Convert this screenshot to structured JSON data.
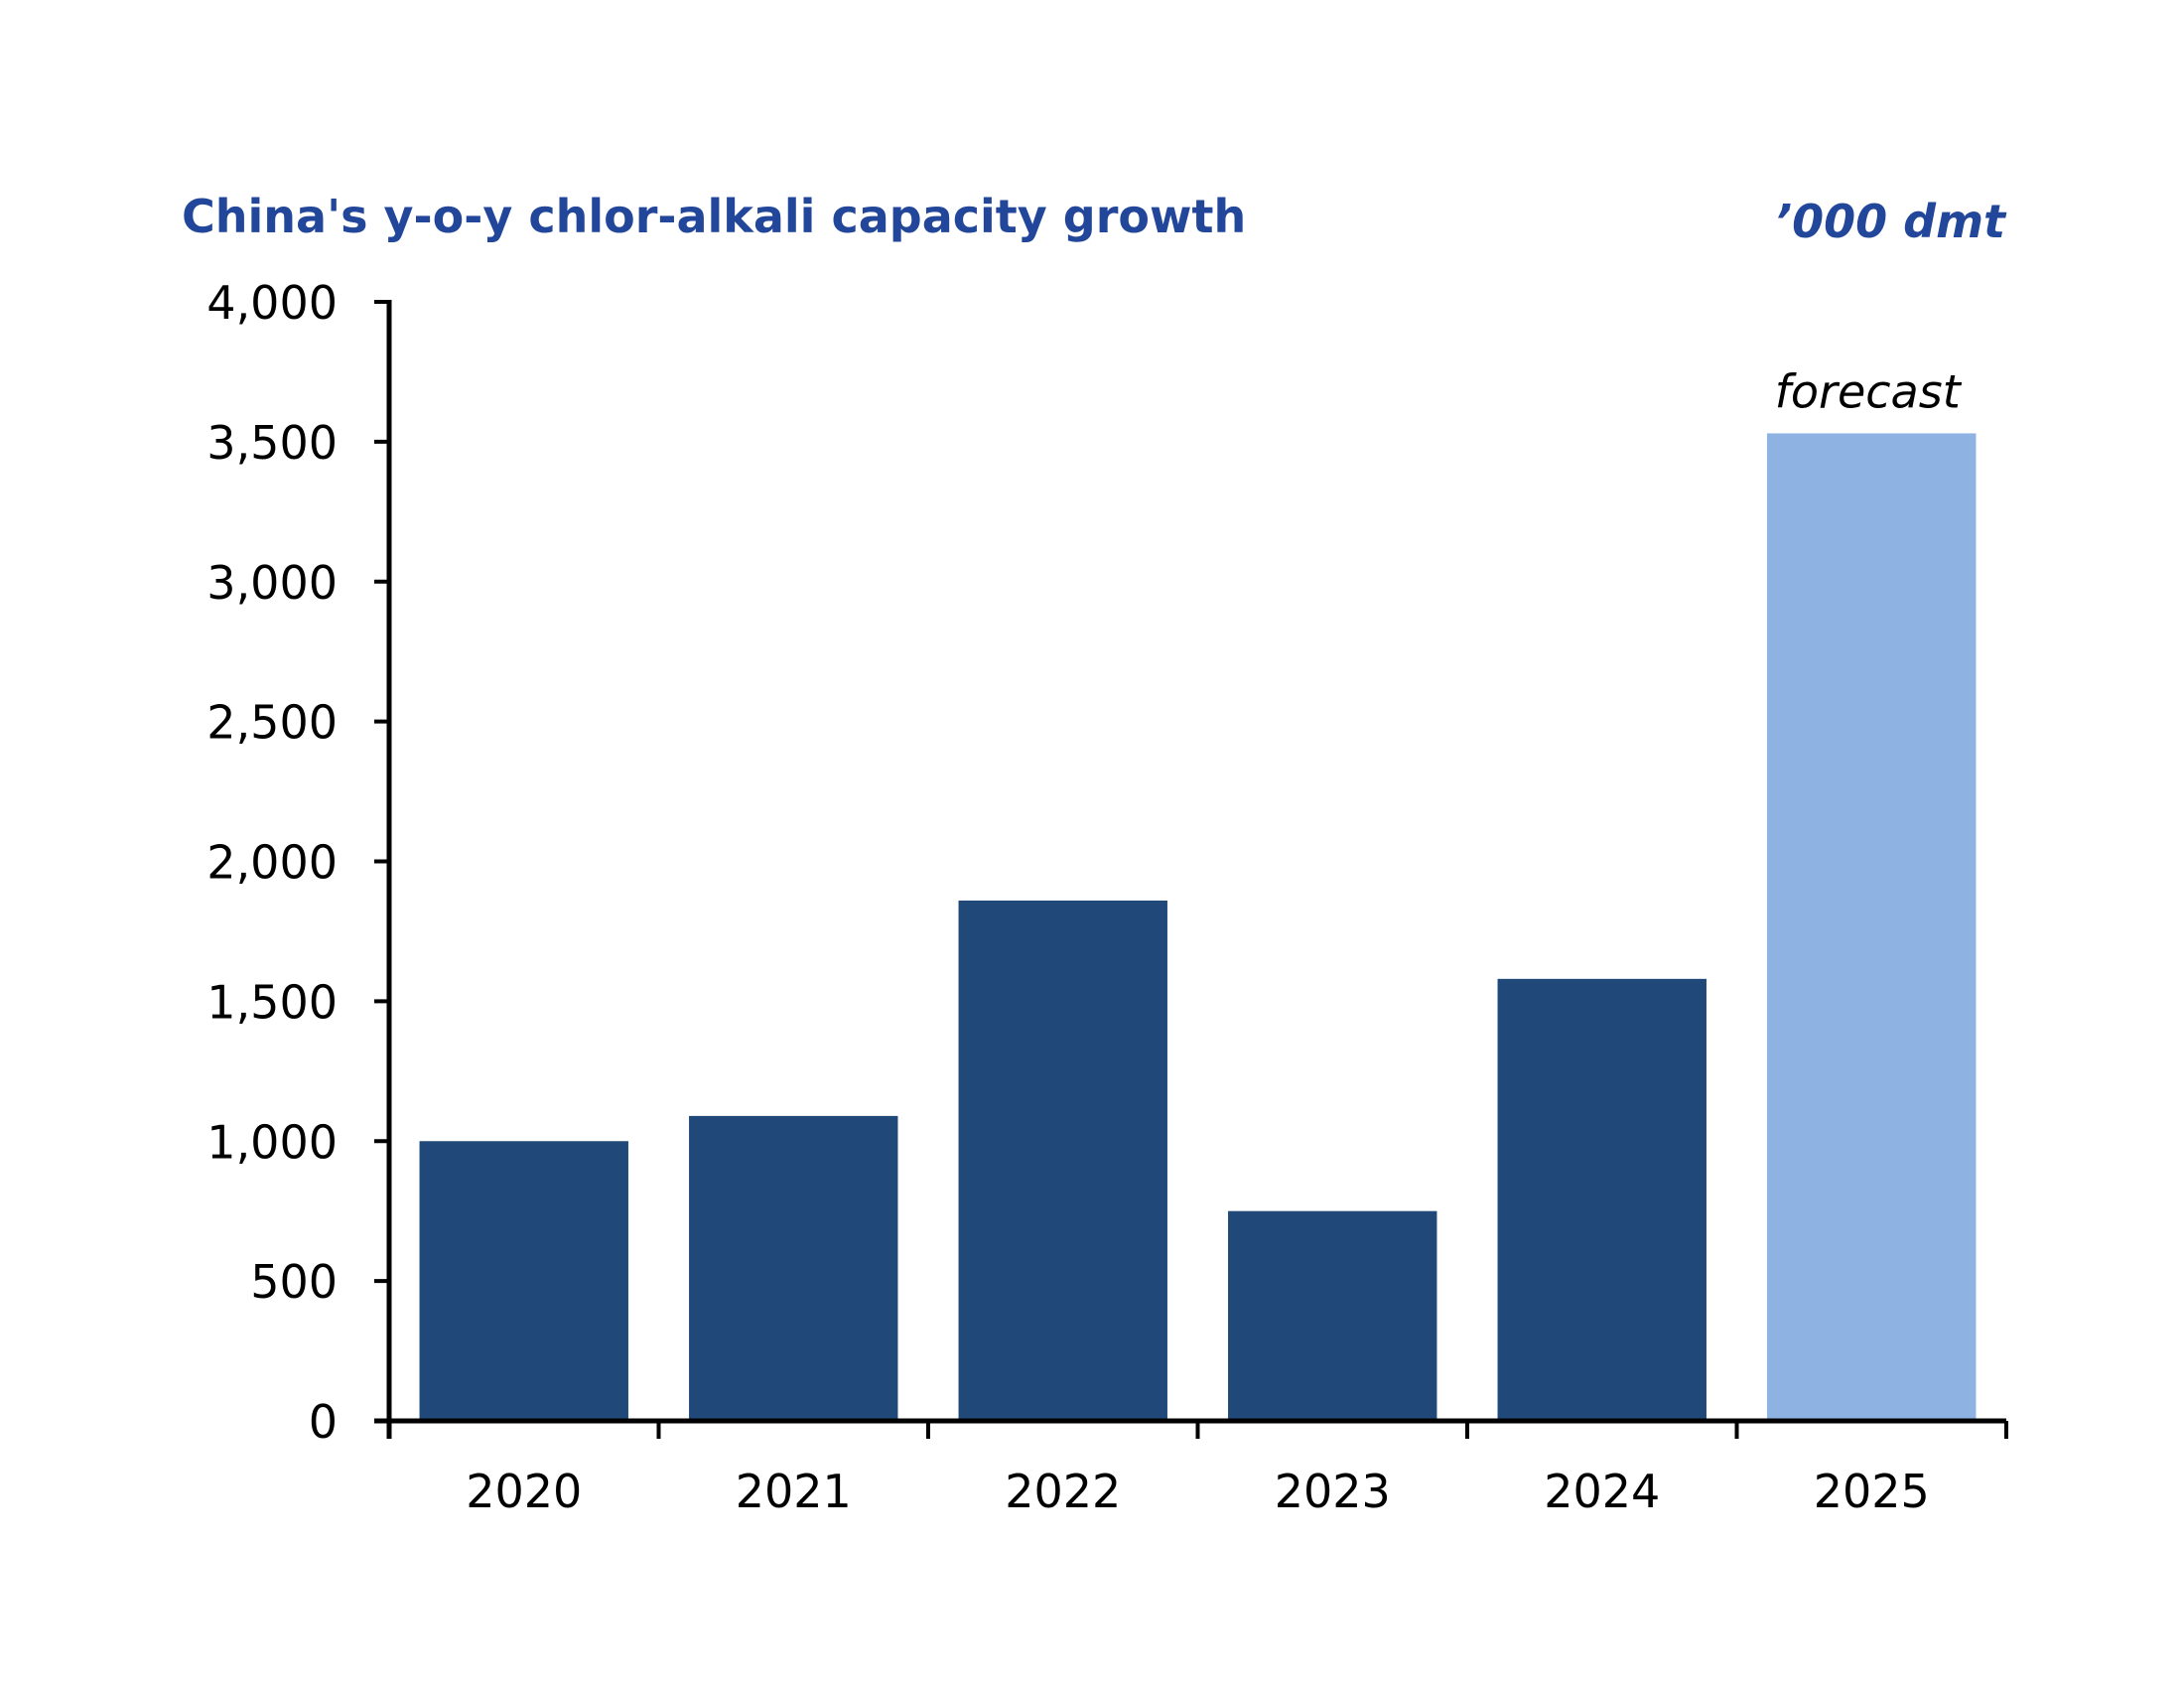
{
  "chart_data": {
    "type": "bar",
    "title": "China's y-o-y chlor-alkali capacity growth",
    "unit_label": "’000 dmt",
    "xlabel": "",
    "ylabel": "",
    "categories": [
      "2020",
      "2021",
      "2022",
      "2023",
      "2024",
      "2025"
    ],
    "values": [
      1000,
      1090,
      1860,
      750,
      1580,
      3530
    ],
    "forecast": [
      false,
      false,
      false,
      false,
      false,
      true
    ],
    "ylim": [
      0,
      4000
    ],
    "yticks": [
      0,
      500,
      1000,
      1500,
      2000,
      2500,
      3000,
      3500,
      4000
    ],
    "ytick_labels": [
      "0",
      "500",
      "1,000",
      "1,500",
      "2,000",
      "2,500",
      "3,000",
      "3,500",
      "4,000"
    ],
    "annotations": [
      {
        "category": "2025",
        "text": "forecast"
      }
    ],
    "grid": false,
    "colors": {
      "actual": "#20497a",
      "forecast": "#8eb3e2",
      "title": "#22479a"
    }
  }
}
